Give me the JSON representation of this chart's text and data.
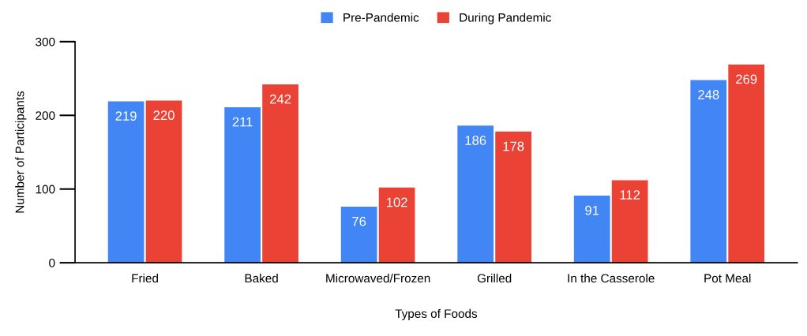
{
  "chart_data": {
    "type": "bar",
    "xlabel": "Types of Foods",
    "ylabel": "Number of Participants",
    "categories": [
      "Fried",
      "Baked",
      "Microwaved/Frozen",
      "Grilled",
      "In the Casserole",
      "Pot Meal"
    ],
    "series": [
      {
        "name": "Pre-Pandemic",
        "color": "#4285f4",
        "values": [
          219,
          211,
          76,
          186,
          91,
          248
        ]
      },
      {
        "name": "During Pandemic",
        "color": "#ea4335",
        "values": [
          220,
          242,
          102,
          178,
          112,
          269
        ]
      }
    ],
    "ylim": [
      0,
      300
    ],
    "yticks": [
      0,
      100,
      200,
      300
    ],
    "grid": false,
    "legend": "top",
    "data_labels": true
  }
}
